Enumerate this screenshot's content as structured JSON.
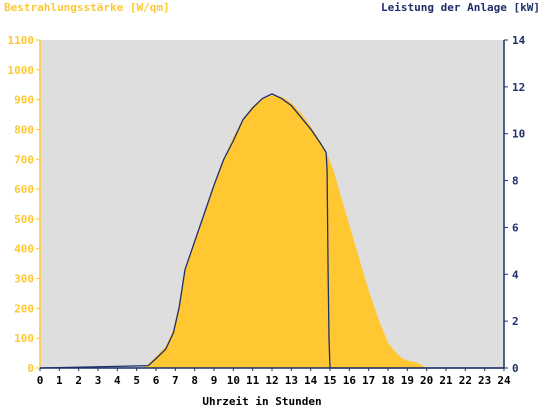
{
  "chart_data": {
    "type": "area",
    "title_left": "Bestrahlungsstärke [W/qm]",
    "title_right": "Leistung der Anlage [kW]",
    "xlabel": "Uhrzeit in Stunden",
    "x_ticks": [
      "0",
      "1",
      "2",
      "3",
      "4",
      "5",
      "6",
      "7",
      "8",
      "9",
      "10",
      "11",
      "12",
      "13",
      "14",
      "15",
      "16",
      "17",
      "18",
      "19",
      "20",
      "21",
      "22",
      "23",
      "24"
    ],
    "xlim": [
      0,
      24
    ],
    "y_left_ticks": [
      "0",
      "100",
      "200",
      "300",
      "400",
      "500",
      "600",
      "700",
      "800",
      "900",
      "1000",
      "1100"
    ],
    "y_left_lim": [
      0,
      1100
    ],
    "y_right_ticks": [
      "0",
      "2",
      "4",
      "6",
      "8",
      "10",
      "12",
      "14"
    ],
    "y_right_lim": [
      0,
      14
    ],
    "grid": false,
    "series": [
      {
        "axis": "left",
        "style": "filled-area",
        "color": "#ffc832",
        "x": [
          0,
          5.3,
          5.6,
          6.0,
          6.5,
          6.9,
          7.2,
          7.5,
          8.0,
          8.5,
          9.0,
          9.5,
          10.0,
          10.5,
          11.0,
          11.5,
          12.0,
          12.5,
          13.0,
          13.5,
          14.0,
          14.5,
          14.9,
          15.2,
          15.5,
          16.0,
          16.5,
          17.0,
          17.5,
          18.0,
          18.5,
          18.8,
          19.0,
          19.5,
          19.8,
          20.0,
          24
        ],
        "values": [
          0,
          0,
          12,
          38,
          72,
          130,
          210,
          330,
          420,
          510,
          610,
          700,
          775,
          835,
          878,
          902,
          914,
          910,
          890,
          855,
          810,
          760,
          710,
          660,
          590,
          480,
          370,
          260,
          165,
          85,
          45,
          30,
          25,
          18,
          8,
          0,
          0
        ]
      },
      {
        "axis": "right",
        "style": "line",
        "color": "#1f2f6a",
        "x": [
          0,
          5.6,
          6.0,
          6.5,
          6.9,
          7.2,
          7.5,
          8.0,
          8.5,
          9.0,
          9.5,
          10.0,
          10.5,
          11.0,
          11.5,
          12.0,
          12.5,
          13.0,
          13.5,
          14.0,
          14.5,
          14.8,
          14.85,
          14.9,
          14.95,
          15.0,
          24
        ],
        "values": [
          0,
          0.1,
          0.4,
          0.8,
          1.5,
          2.6,
          4.2,
          5.4,
          6.6,
          7.8,
          8.9,
          9.7,
          10.6,
          11.1,
          11.5,
          11.7,
          11.5,
          11.2,
          10.7,
          10.2,
          9.6,
          9.2,
          8.4,
          4.2,
          1.2,
          0,
          0
        ]
      }
    ],
    "colors": {
      "plot_background": "#dedede",
      "left_axis": "#ffc832",
      "right_axis": "#1f2f6a",
      "x_axis": "#000000"
    }
  }
}
